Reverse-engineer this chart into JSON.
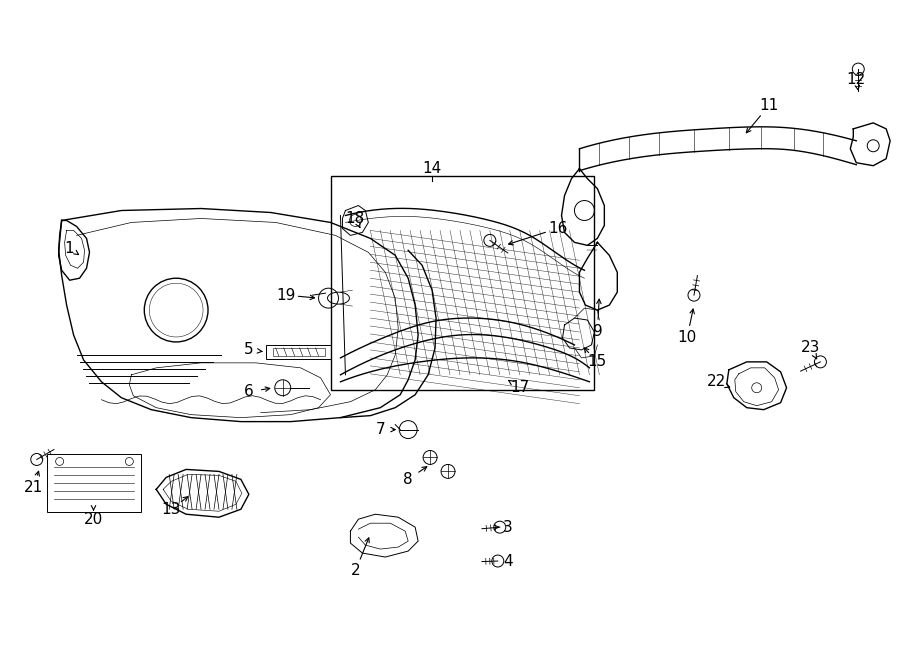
{
  "bg": "#ffffff",
  "lc": "#000000",
  "figsize": [
    9.0,
    6.61
  ],
  "dpi": 100
}
